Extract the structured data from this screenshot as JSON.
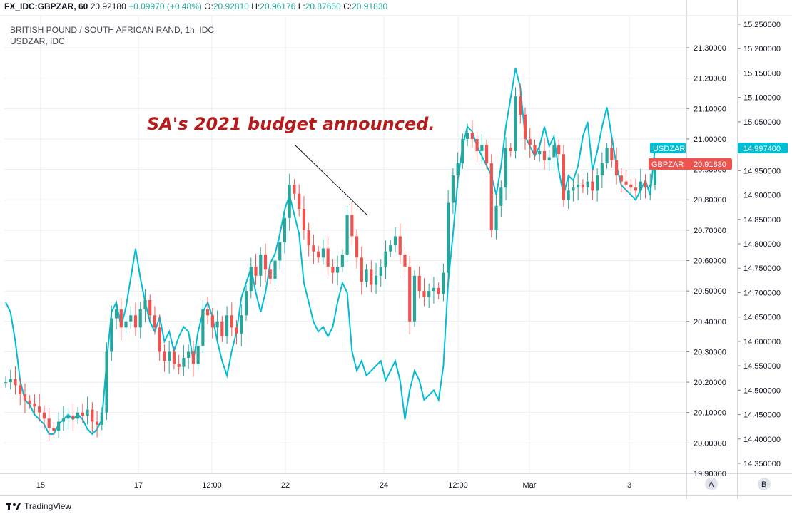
{
  "header": {
    "symbol": "FX_IDC:GBPZAR, 60",
    "last": "20.92180",
    "change": "+0.09970 (+0.48%)",
    "open_label": "O:",
    "open": "20.92810",
    "high_label": "H:",
    "high": "20.96176",
    "low_label": "L:",
    "low": "20.87650",
    "close_label": "C:",
    "close": "20.91830"
  },
  "legend": {
    "main": "BRITISH POUND / SOUTH AFRICAN RAND, 1h, IDC",
    "compare": "USDZAR, IDC"
  },
  "annotation": "SA's 2021 budget announced.",
  "tags": {
    "usdzar_label": "USDZAR",
    "usdzar_value": "14.997400",
    "gbpzar_label": "GBPZAR",
    "gbpzar_value": "20.91830"
  },
  "scale_buttons": {
    "a": "A",
    "b": "B"
  },
  "brand": "TradingView",
  "colors": {
    "up": "#26a69a",
    "down": "#ef5350",
    "usdzar": "#00bcd4",
    "annotation": "#b71c1c",
    "grid": "#e9ecf1"
  },
  "chart_data": {
    "type": "line",
    "title": "BRITISH POUND / SOUTH AFRICAN RAND, 1h, IDC",
    "x_ticks": [
      "15",
      "17",
      "12:00",
      "22",
      "24",
      "12:00",
      "Mar",
      "3"
    ],
    "left_axis_ticks": [
      "21.30000",
      "21.20000",
      "21.10000",
      "21.00000",
      "20.90000",
      "20.80000",
      "20.70000",
      "20.60000",
      "20.50000",
      "20.40000",
      "20.30000",
      "20.20000",
      "20.10000",
      "20.00000",
      "19.90000"
    ],
    "right_axis_ticks": [
      "15.250000",
      "15.200000",
      "15.150000",
      "15.100000",
      "15.050000",
      "15.000000",
      "14.950000",
      "14.900000",
      "14.850000",
      "14.800000",
      "14.750000",
      "14.700000",
      "14.650000",
      "14.600000",
      "14.550000",
      "14.500000",
      "14.450000",
      "14.400000",
      "14.350000"
    ],
    "gbpzar_ylim": [
      19.9,
      21.35
    ],
    "usdzar_ylim": [
      14.33,
      15.255
    ],
    "series": [
      {
        "name": "GBPZAR",
        "style": "candlestick",
        "values": [
          20.2,
          20.21,
          20.19,
          20.16,
          20.14,
          20.13,
          20.12,
          20.1,
          20.08,
          20.05,
          20.04,
          20.07,
          20.08,
          20.09,
          20.08,
          20.1,
          20.09,
          20.11,
          20.07,
          20.06,
          20.1,
          20.3,
          20.41,
          20.44,
          20.38,
          20.4,
          20.42,
          20.38,
          20.44,
          20.47,
          20.42,
          20.38,
          20.3,
          20.27,
          20.3,
          20.26,
          20.25,
          20.28,
          20.3,
          20.26,
          20.32,
          20.44,
          20.42,
          20.38,
          20.4,
          20.35,
          20.42,
          20.38,
          20.36,
          20.42,
          20.5,
          20.58,
          20.55,
          20.62,
          20.57,
          20.54,
          20.6,
          20.66,
          20.74,
          20.85,
          20.82,
          20.77,
          20.7,
          20.65,
          20.63,
          20.61,
          20.64,
          20.58,
          20.56,
          20.58,
          20.62,
          20.75,
          20.68,
          20.61,
          20.53,
          20.57,
          20.52,
          20.55,
          20.58,
          20.63,
          20.65,
          20.68,
          20.62,
          20.58,
          20.4,
          20.55,
          20.5,
          20.48,
          20.5,
          20.51,
          20.49,
          20.56,
          20.79,
          20.88,
          20.92,
          21.0,
          21.02,
          21.0,
          20.96,
          20.98,
          20.92,
          20.7,
          20.78,
          20.84,
          20.97,
          20.96,
          21.14,
          21.08,
          21.0,
          20.98,
          20.95,
          20.96,
          20.93,
          20.94,
          20.98,
          20.95,
          20.8,
          20.83,
          20.84,
          20.85,
          20.84,
          20.86,
          20.83,
          20.88,
          20.92,
          20.97,
          20.93,
          20.88,
          20.86,
          20.85,
          20.84,
          20.83,
          20.86,
          20.84,
          20.85,
          20.92
        ]
      },
      {
        "name": "USDZAR",
        "style": "line",
        "values": [
          14.68,
          14.66,
          14.6,
          14.52,
          14.48,
          14.47,
          14.45,
          14.44,
          14.43,
          14.41,
          14.41,
          14.43,
          14.44,
          14.45,
          14.44,
          14.45,
          14.44,
          14.42,
          14.41,
          14.42,
          14.44,
          14.56,
          14.66,
          14.68,
          14.63,
          14.67,
          14.73,
          14.79,
          14.73,
          14.68,
          14.64,
          14.62,
          14.65,
          14.6,
          14.62,
          14.58,
          14.61,
          14.63,
          14.62,
          14.56,
          14.62,
          14.66,
          14.68,
          14.65,
          14.6,
          14.56,
          14.53,
          14.58,
          14.62,
          14.69,
          14.72,
          14.75,
          14.7,
          14.66,
          14.7,
          14.76,
          14.78,
          14.82,
          14.87,
          14.9,
          14.86,
          14.82,
          14.72,
          14.68,
          14.64,
          14.62,
          14.63,
          14.61,
          14.63,
          14.68,
          14.72,
          14.7,
          14.58,
          14.54,
          14.56,
          14.53,
          14.54,
          14.55,
          14.56,
          14.52,
          14.54,
          14.56,
          14.52,
          14.44,
          14.5,
          14.54,
          14.52,
          14.48,
          14.49,
          14.5,
          14.48,
          14.55,
          14.72,
          14.82,
          14.93,
          15.0,
          15.04,
          15.03,
          15.0,
          14.98,
          14.96,
          14.94,
          14.9,
          14.96,
          15.04,
          15.1,
          15.16,
          15.12,
          15.02,
          15.0,
          14.98,
          15.0,
          15.04,
          15.0,
          15.02,
          14.95,
          14.9,
          14.94,
          14.93,
          14.96,
          15.02,
          15.05,
          14.95,
          14.99,
          15.04,
          15.08,
          15.02,
          14.96,
          14.92,
          14.91,
          14.9,
          14.89,
          14.91,
          14.93,
          14.9,
          14.997
        ]
      }
    ],
    "grid": true,
    "legend_placement": "top-left"
  }
}
